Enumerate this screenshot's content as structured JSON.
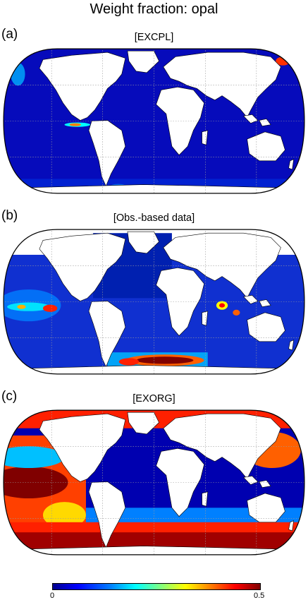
{
  "title": "Weight fraction: opal",
  "panels": [
    {
      "letter": "(a)",
      "name": "[EXCPL]"
    },
    {
      "letter": "(b)",
      "name": "[Obs.-based data]"
    },
    {
      "letter": "(c)",
      "name": "[EXORG]"
    }
  ],
  "colorbar": {
    "min_label": "0",
    "max_label": "0.5",
    "colors": [
      "#00008f",
      "#0000ff",
      "#0080ff",
      "#00ffff",
      "#80ff80",
      "#ffff00",
      "#ff8000",
      "#ff0000",
      "#800000"
    ]
  },
  "colors": {
    "ocean_low": "#0a12b4",
    "land": "#ffffff",
    "coast": "#000000"
  }
}
